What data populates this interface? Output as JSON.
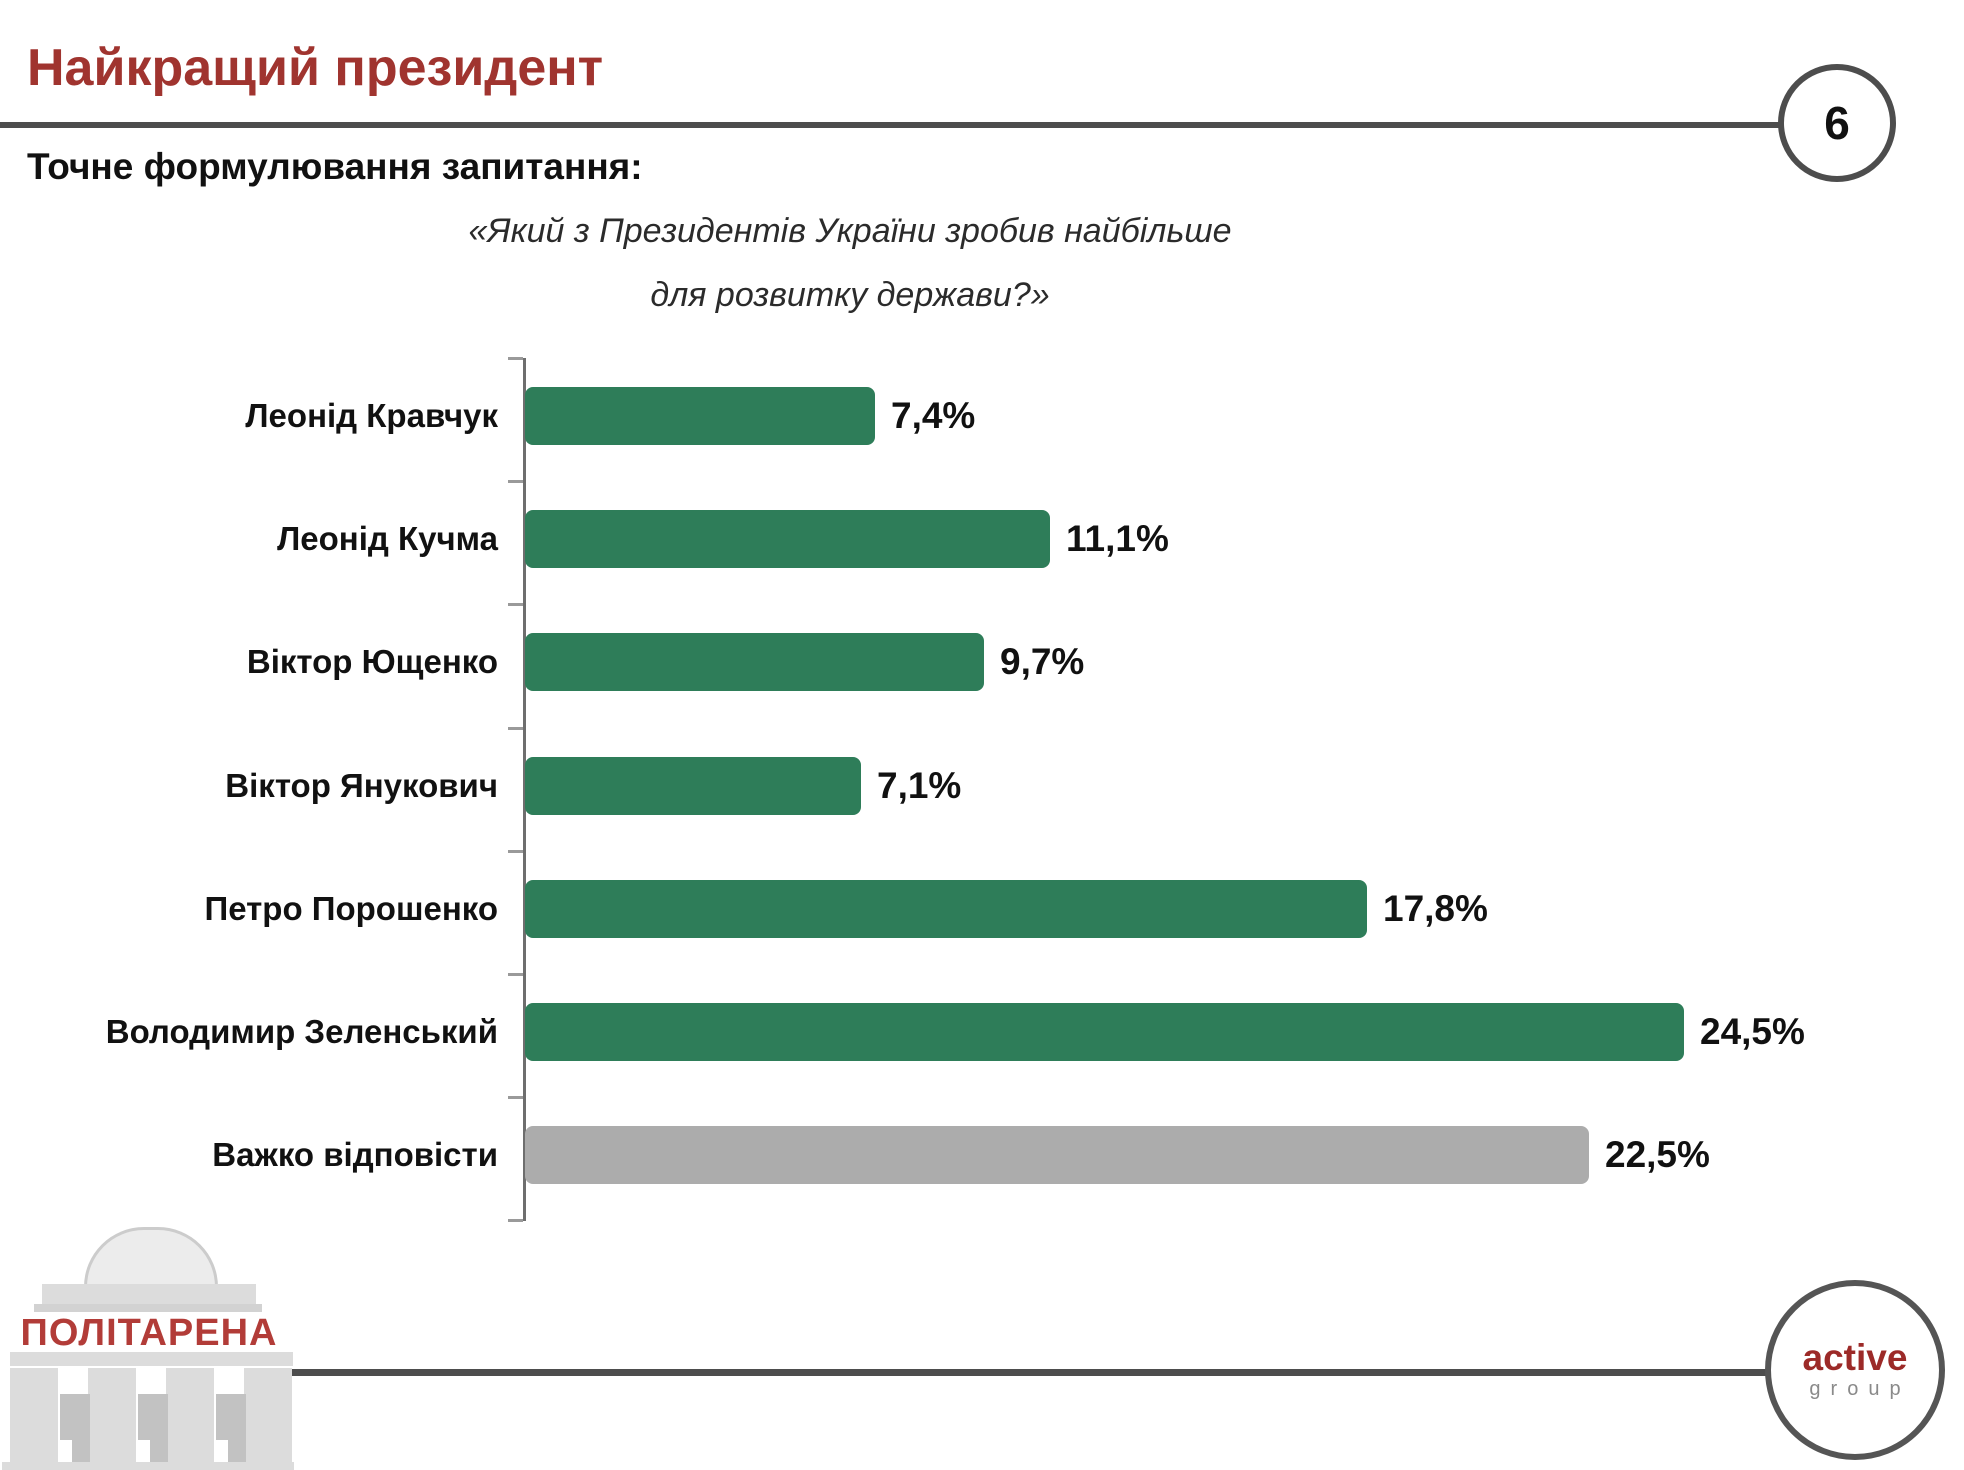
{
  "page": {
    "slide_number": "6",
    "title": "Найкращий президент",
    "subtitle": "Точне формулювання запитання:",
    "question_line1": "«Який з Президентів України зробив найбільше",
    "question_line2": "для розвитку держави?»"
  },
  "chart_data": {
    "type": "bar",
    "orientation": "horizontal",
    "title": "",
    "xlabel": "",
    "ylabel": "",
    "xlim": [
      0,
      26
    ],
    "grid": false,
    "legend": "none",
    "categories": [
      "Леонід Кравчук",
      "Леонід Кучма",
      "Віктор Ющенко",
      "Віктор Янукович",
      "Петро Порошенко",
      "Володимир Зеленський",
      "Важко відповісти"
    ],
    "values": [
      7.4,
      11.1,
      9.7,
      7.1,
      17.8,
      24.5,
      22.5
    ],
    "value_labels": [
      "7,4%",
      "11,1%",
      "9,7%",
      "7,1%",
      "17,8%",
      "24,5%",
      "22,5%"
    ],
    "bar_colors": [
      "#2e7d59",
      "#2e7d59",
      "#2e7d59",
      "#2e7d59",
      "#2e7d59",
      "#2e7d59",
      "#acacac"
    ]
  },
  "footer": {
    "politarena_label": "ПОЛІТАРЕНА",
    "active_group_line1": "active",
    "active_group_line2": "group"
  },
  "colors": {
    "title_red": "#a0342f",
    "logo_red": "#b23c38",
    "active_red": "#9c2a28",
    "bar_green": "#2e7d59",
    "bar_gray": "#acacac",
    "line_gray": "#4d4d4d"
  }
}
